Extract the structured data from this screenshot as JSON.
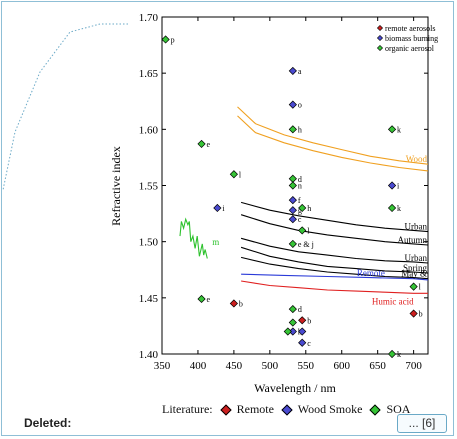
{
  "colors": {
    "remote": "#cc1f1f",
    "biomass": "#4a4ad0",
    "organic": "#36c436",
    "wood_curve": "#f0a020",
    "humic_curve": "#e02020",
    "remote_curve": "#2a3ad8",
    "cloud_curve": "#2ec22e",
    "black_curve": "#000000",
    "frame_border": "#8fbfd6"
  },
  "chart_data": {
    "type": "scatter",
    "xlabel": "Wavelength / nm",
    "ylabel": "Refractive index",
    "xlim": [
      350,
      720
    ],
    "ylim": [
      1.4,
      1.7
    ],
    "x_ticks": [
      "350",
      "400",
      "450",
      "500",
      "550",
      "600",
      "650",
      "700"
    ],
    "y_ticks": [
      "1.40",
      "1.45",
      "1.50",
      "1.55",
      "1.60",
      "1.65",
      "1.70"
    ],
    "legend": {
      "placement": "top-right",
      "entries": [
        {
          "name": "remote aerosols",
          "color_key": "remote"
        },
        {
          "name": "biomass burning",
          "color_key": "biomass"
        },
        {
          "name": "organic aerosol",
          "color_key": "organic"
        }
      ]
    },
    "series": [
      {
        "name": "remote aerosols",
        "color_key": "remote",
        "points": [
          {
            "x": 450,
            "y": 1.445,
            "label": "b"
          },
          {
            "x": 545,
            "y": 1.43,
            "label": "b"
          },
          {
            "x": 700,
            "y": 1.436,
            "label": "b"
          }
        ]
      },
      {
        "name": "biomass burning",
        "color_key": "biomass",
        "points": [
          {
            "x": 532,
            "y": 1.652,
            "label": "a"
          },
          {
            "x": 532,
            "y": 1.622,
            "label": "o"
          },
          {
            "x": 427,
            "y": 1.53,
            "label": "i"
          },
          {
            "x": 670,
            "y": 1.55,
            "label": "i"
          },
          {
            "x": 532,
            "y": 1.537,
            "label": "f"
          },
          {
            "x": 532,
            "y": 1.528,
            "label": "g"
          },
          {
            "x": 532,
            "y": 1.52,
            "label": "c"
          },
          {
            "x": 532,
            "y": 1.42,
            "label": "h"
          },
          {
            "x": 545,
            "y": 1.42,
            "label": ""
          },
          {
            "x": 545,
            "y": 1.41,
            "label": "c"
          }
        ]
      },
      {
        "name": "organic aerosol",
        "color_key": "organic",
        "points": [
          {
            "x": 355,
            "y": 1.68,
            "label": "p"
          },
          {
            "x": 405,
            "y": 1.587,
            "label": "e"
          },
          {
            "x": 450,
            "y": 1.56,
            "label": "l"
          },
          {
            "x": 532,
            "y": 1.6,
            "label": "h"
          },
          {
            "x": 670,
            "y": 1.6,
            "label": "k"
          },
          {
            "x": 532,
            "y": 1.556,
            "label": "d"
          },
          {
            "x": 532,
            "y": 1.55,
            "label": "n"
          },
          {
            "x": 545,
            "y": 1.53,
            "label": "h"
          },
          {
            "x": 545,
            "y": 1.51,
            "label": "l"
          },
          {
            "x": 532,
            "y": 1.498,
            "label": "e & j"
          },
          {
            "x": 670,
            "y": 1.53,
            "label": "k"
          },
          {
            "x": 405,
            "y": 1.449,
            "label": "e"
          },
          {
            "x": 532,
            "y": 1.44,
            "label": "d"
          },
          {
            "x": 532,
            "y": 1.428,
            "label": ""
          },
          {
            "x": 700,
            "y": 1.46,
            "label": "l"
          },
          {
            "x": 670,
            "y": 1.4,
            "label": "k"
          },
          {
            "x": 525,
            "y": 1.42,
            "label": ""
          }
        ]
      }
    ],
    "curves": [
      {
        "name": "Wood",
        "label": "Wood",
        "color_key": "wood_curve",
        "points": [
          [
            455,
            1.62
          ],
          [
            480,
            1.605
          ],
          [
            520,
            1.595
          ],
          [
            560,
            1.588
          ],
          [
            600,
            1.582
          ],
          [
            640,
            1.576
          ],
          [
            680,
            1.572
          ],
          [
            720,
            1.569
          ]
        ]
      },
      {
        "name": "Wood 2",
        "label": "",
        "color_key": "wood_curve",
        "points": [
          [
            455,
            1.612
          ],
          [
            480,
            1.597
          ],
          [
            520,
            1.588
          ],
          [
            560,
            1.581
          ],
          [
            600,
            1.575
          ],
          [
            640,
            1.57
          ],
          [
            680,
            1.566
          ],
          [
            720,
            1.563
          ]
        ]
      },
      {
        "name": "Urban",
        "label": "Urban",
        "color_key": "black_curve",
        "points": [
          [
            460,
            1.535
          ],
          [
            500,
            1.528
          ],
          [
            540,
            1.523
          ],
          [
            580,
            1.519
          ],
          [
            620,
            1.515
          ],
          [
            660,
            1.512
          ],
          [
            700,
            1.51
          ],
          [
            720,
            1.509
          ]
        ]
      },
      {
        "name": "Autumn",
        "label": "Autumn",
        "color_key": "black_curve",
        "points": [
          [
            460,
            1.524
          ],
          [
            500,
            1.516
          ],
          [
            540,
            1.51
          ],
          [
            580,
            1.506
          ],
          [
            620,
            1.503
          ],
          [
            660,
            1.5
          ],
          [
            700,
            1.498
          ],
          [
            720,
            1.497
          ]
        ]
      },
      {
        "name": "Urban 2",
        "label": "Urban",
        "color_key": "black_curve",
        "points": [
          [
            460,
            1.503
          ],
          [
            500,
            1.496
          ],
          [
            540,
            1.491
          ],
          [
            580,
            1.488
          ],
          [
            620,
            1.485
          ],
          [
            660,
            1.483
          ],
          [
            700,
            1.482
          ],
          [
            720,
            1.481
          ]
        ]
      },
      {
        "name": "Spring",
        "label": "Spring",
        "color_key": "black_curve",
        "points": [
          [
            460,
            1.495
          ],
          [
            500,
            1.487
          ],
          [
            540,
            1.482
          ],
          [
            580,
            1.478
          ],
          [
            620,
            1.476
          ],
          [
            660,
            1.474
          ],
          [
            700,
            1.473
          ],
          [
            720,
            1.472
          ]
        ]
      },
      {
        "name": "May",
        "label": "May &",
        "color_key": "black_curve",
        "points": [
          [
            460,
            1.486
          ],
          [
            500,
            1.48
          ],
          [
            540,
            1.476
          ],
          [
            580,
            1.473
          ],
          [
            620,
            1.471
          ],
          [
            660,
            1.469
          ],
          [
            700,
            1.468
          ],
          [
            720,
            1.467
          ]
        ]
      },
      {
        "name": "Remote",
        "label": "Remote",
        "color_key": "remote_curve",
        "points": [
          [
            460,
            1.471
          ],
          [
            520,
            1.47
          ],
          [
            580,
            1.469
          ],
          [
            640,
            1.468
          ],
          [
            700,
            1.467
          ],
          [
            720,
            1.466
          ]
        ]
      },
      {
        "name": "Humic acid",
        "label": "Humic acid",
        "color_key": "humic_curve",
        "points": [
          [
            460,
            1.465
          ],
          [
            500,
            1.461
          ],
          [
            540,
            1.459
          ],
          [
            580,
            1.457
          ],
          [
            620,
            1.456
          ],
          [
            660,
            1.455
          ],
          [
            700,
            1.454
          ],
          [
            720,
            1.454
          ]
        ]
      },
      {
        "name": "m",
        "label": "m",
        "color_key": "cloud_curve",
        "points": [
          [
            375,
            1.505
          ],
          [
            377,
            1.518
          ],
          [
            380,
            1.512
          ],
          [
            383,
            1.52
          ],
          [
            386,
            1.515
          ],
          [
            388,
            1.518
          ],
          [
            390,
            1.5
          ],
          [
            393,
            1.505
          ],
          [
            396,
            1.494
          ],
          [
            399,
            1.505
          ],
          [
            402,
            1.487
          ],
          [
            406,
            1.498
          ],
          [
            408,
            1.488
          ],
          [
            410,
            1.493
          ],
          [
            413,
            1.485
          ]
        ]
      }
    ]
  },
  "footer": {
    "literature_label": "Literature:",
    "legend_items": [
      {
        "label": "Remote",
        "color_key": "remote"
      },
      {
        "label": "Wood Smoke",
        "color_key": "biomass"
      },
      {
        "label": "SOA",
        "color_key": "organic"
      }
    ],
    "deleted_label": "Deleted:",
    "comment_ref": "... [6]"
  }
}
